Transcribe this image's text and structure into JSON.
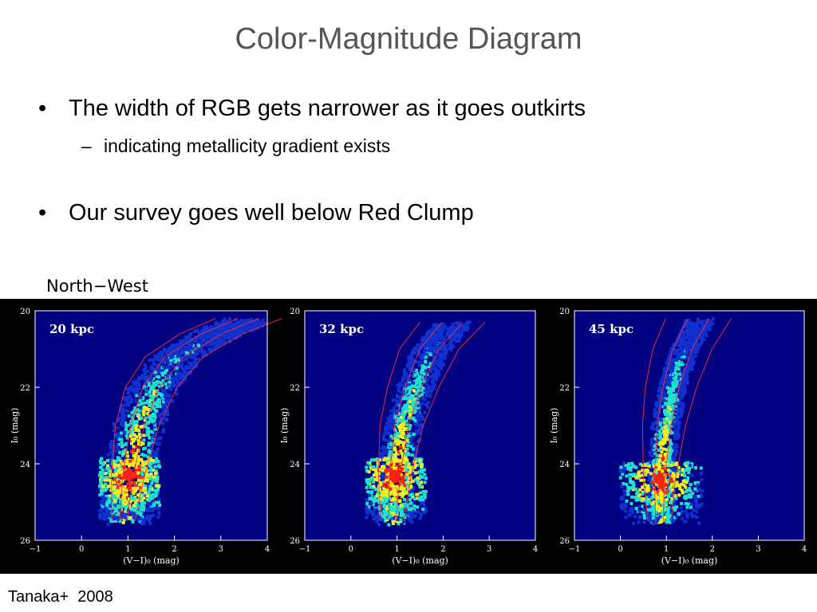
{
  "title": "Color-Magnitude Diagram",
  "bullets": [
    {
      "text": "The width of RGB gets narrower as it goes outkirts",
      "sub": [
        "indicating metallicity gradient exists"
      ]
    },
    {
      "text": "Our survey goes well below Red Clump",
      "sub": []
    }
  ],
  "bullet_marker": "•",
  "sub_marker": "–",
  "figure_label": "North−West",
  "citation": "Tanaka+  2008",
  "colors": {
    "title": "#555555",
    "panel_background": "#000080",
    "density_low": "#1030d0",
    "density_mid": "#20e0d0",
    "density_high": "#f0f020",
    "density_peak": "#ff2010",
    "isochrone": "#ff3030"
  },
  "chart_data": [
    {
      "type": "heatmap",
      "annotation": "20 kpc",
      "xlabel": "(V−I)₀ (mag)",
      "ylabel": "I₀ (mag)",
      "xlim": [
        -1,
        4
      ],
      "ylim": [
        26,
        20
      ],
      "xticks": [
        "−1",
        "0",
        "1",
        "2",
        "3",
        "4"
      ],
      "yticks": [
        "20",
        "22",
        "24",
        "26"
      ],
      "density_peak": {
        "x": 1.0,
        "y": 24.3
      },
      "rgb_ridge": [
        [
          0.9,
          25.5
        ],
        [
          1.0,
          24.3
        ],
        [
          1.2,
          23.0
        ],
        [
          1.5,
          22.0
        ],
        [
          2.0,
          21.2
        ],
        [
          2.8,
          20.6
        ],
        [
          3.6,
          20.2
        ]
      ]
    },
    {
      "type": "heatmap",
      "annotation": "32 kpc",
      "xlabel": "(V−I)₀ (mag)",
      "ylabel": "I₀ (mag)",
      "xlim": [
        -1,
        4
      ],
      "ylim": [
        26,
        20
      ],
      "xticks": [
        "−1",
        "0",
        "1",
        "2",
        "3",
        "4"
      ],
      "yticks": [
        "20",
        "22",
        "24",
        "26"
      ],
      "density_peak": {
        "x": 0.95,
        "y": 24.3
      },
      "rgb_ridge": [
        [
          0.9,
          25.5
        ],
        [
          0.95,
          24.3
        ],
        [
          1.1,
          23.0
        ],
        [
          1.35,
          22.0
        ],
        [
          1.7,
          21.0
        ],
        [
          2.2,
          20.3
        ]
      ]
    },
    {
      "type": "heatmap",
      "annotation": "45 kpc",
      "xlabel": "(V−I)₀ (mag)",
      "ylabel": "I₀ (mag)",
      "xlim": [
        -1,
        4
      ],
      "ylim": [
        26,
        20
      ],
      "xticks": [
        "−1",
        "0",
        "1",
        "2",
        "3",
        "4"
      ],
      "yticks": [
        "20",
        "22",
        "24",
        "26"
      ],
      "density_peak": {
        "x": 0.85,
        "y": 24.4
      },
      "rgb_ridge": [
        [
          0.85,
          25.5
        ],
        [
          0.85,
          24.4
        ],
        [
          0.95,
          23.0
        ],
        [
          1.1,
          22.0
        ],
        [
          1.35,
          21.0
        ],
        [
          1.7,
          20.2
        ]
      ]
    }
  ]
}
